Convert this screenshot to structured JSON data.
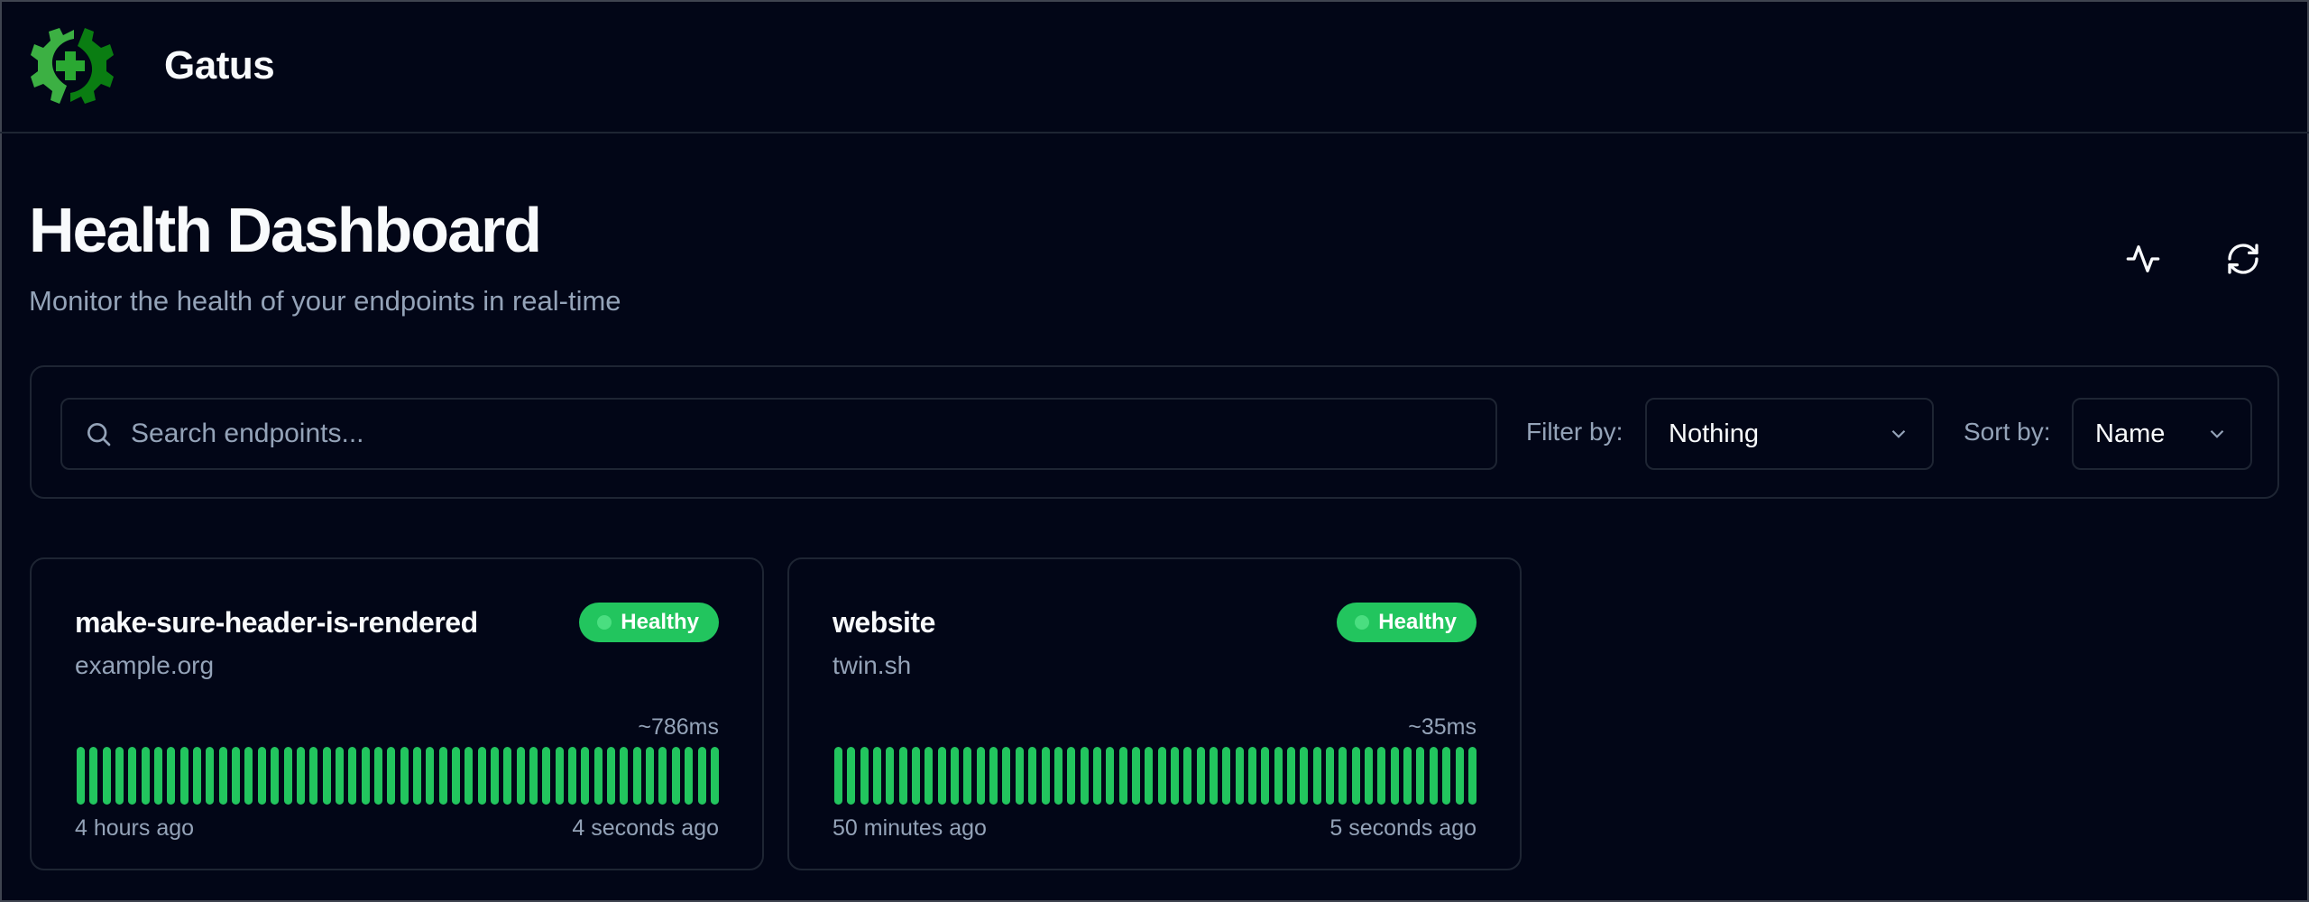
{
  "app": {
    "name": "Gatus",
    "logo_colors": [
      "#3cb043",
      "#0a7d12"
    ]
  },
  "header": {
    "title": "Health Dashboard",
    "subtitle": "Monitor the health of your endpoints in real-time",
    "actions": [
      {
        "icon": "activity-icon"
      },
      {
        "icon": "refresh-icon"
      }
    ]
  },
  "filters": {
    "search_placeholder": "Search endpoints...",
    "search_value": "",
    "filter_label": "Filter by:",
    "filter_value": "Nothing",
    "sort_label": "Sort by:",
    "sort_value": "Name"
  },
  "colors": {
    "healthy": "#22c55e",
    "background": "#020617"
  },
  "endpoints": [
    {
      "name": "make-sure-header-is-rendered",
      "host": "example.org",
      "status": "Healthy",
      "response_time": "~786ms",
      "oldest": "4 hours ago",
      "newest": "4 seconds ago",
      "results": 50,
      "results_status": "all-success"
    },
    {
      "name": "website",
      "host": "twin.sh",
      "status": "Healthy",
      "response_time": "~35ms",
      "oldest": "50 minutes ago",
      "newest": "5 seconds ago",
      "results": 50,
      "results_status": "all-success"
    }
  ]
}
